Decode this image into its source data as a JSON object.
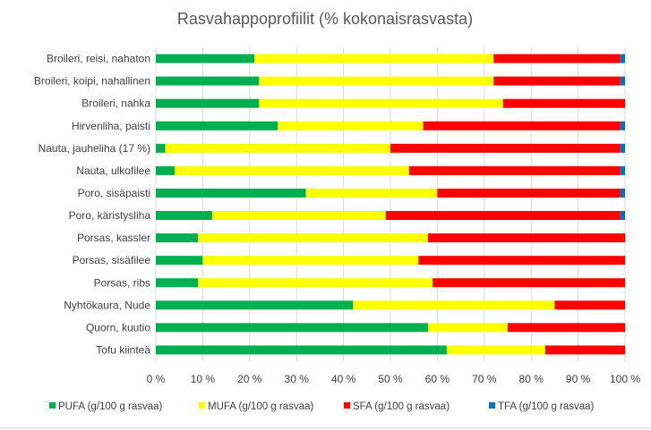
{
  "chart_data": {
    "type": "bar",
    "orientation": "horizontal",
    "stacked": "percent",
    "title": "Rasvahappoprofiilit (% kokonaisrasvasta)",
    "xlabel": "",
    "ylabel": "",
    "xlim": [
      0,
      100
    ],
    "x_ticks": [
      "0 %",
      "10 %",
      "20 %",
      "30 %",
      "40 %",
      "50 %",
      "60 %",
      "70 %",
      "80 %",
      "90 %",
      "100 %"
    ],
    "grid": true,
    "legend_position": "bottom",
    "categories": [
      "Broileri, reisi, nahaton",
      "Broileri, koipi, nahallinen",
      "Broileri, nahka",
      "Hirvenliha, paisti",
      "Nauta, jauheliha (17 %)",
      "Nauta, ulkofilee",
      "Poro, sisäpaisti",
      "Poro, käristysliha",
      "Porsas, kassler",
      "Porsas, sisäfilee",
      "Porsas, ribs",
      "Nyhtökaura, Nude",
      "Quorn, kuutio",
      "Tofu kiinteä"
    ],
    "series": [
      {
        "name": "PUFA (g/100 g rasvaa)",
        "color": "#00b050",
        "values": [
          21,
          22,
          22,
          26,
          2,
          4,
          32,
          12,
          9,
          10,
          9,
          42,
          58,
          62
        ]
      },
      {
        "name": "MUFA (g/100 g rasvaa)",
        "color": "#ffff00",
        "values": [
          51,
          50,
          52,
          31,
          48,
          50,
          28,
          37,
          49,
          46,
          50,
          43,
          17,
          21
        ]
      },
      {
        "name": "SFA (g/100 g rasvaa)",
        "color": "#ff0000",
        "values": [
          27,
          27,
          26,
          42,
          49,
          45,
          39,
          50,
          42,
          44,
          41,
          15,
          25,
          17
        ]
      },
      {
        "name": "TFA (g/100 g rasvaa)",
        "color": "#0070c0",
        "values": [
          1,
          1,
          0,
          1,
          1,
          1,
          1,
          1,
          0,
          0,
          0,
          0,
          0,
          0
        ]
      }
    ]
  }
}
